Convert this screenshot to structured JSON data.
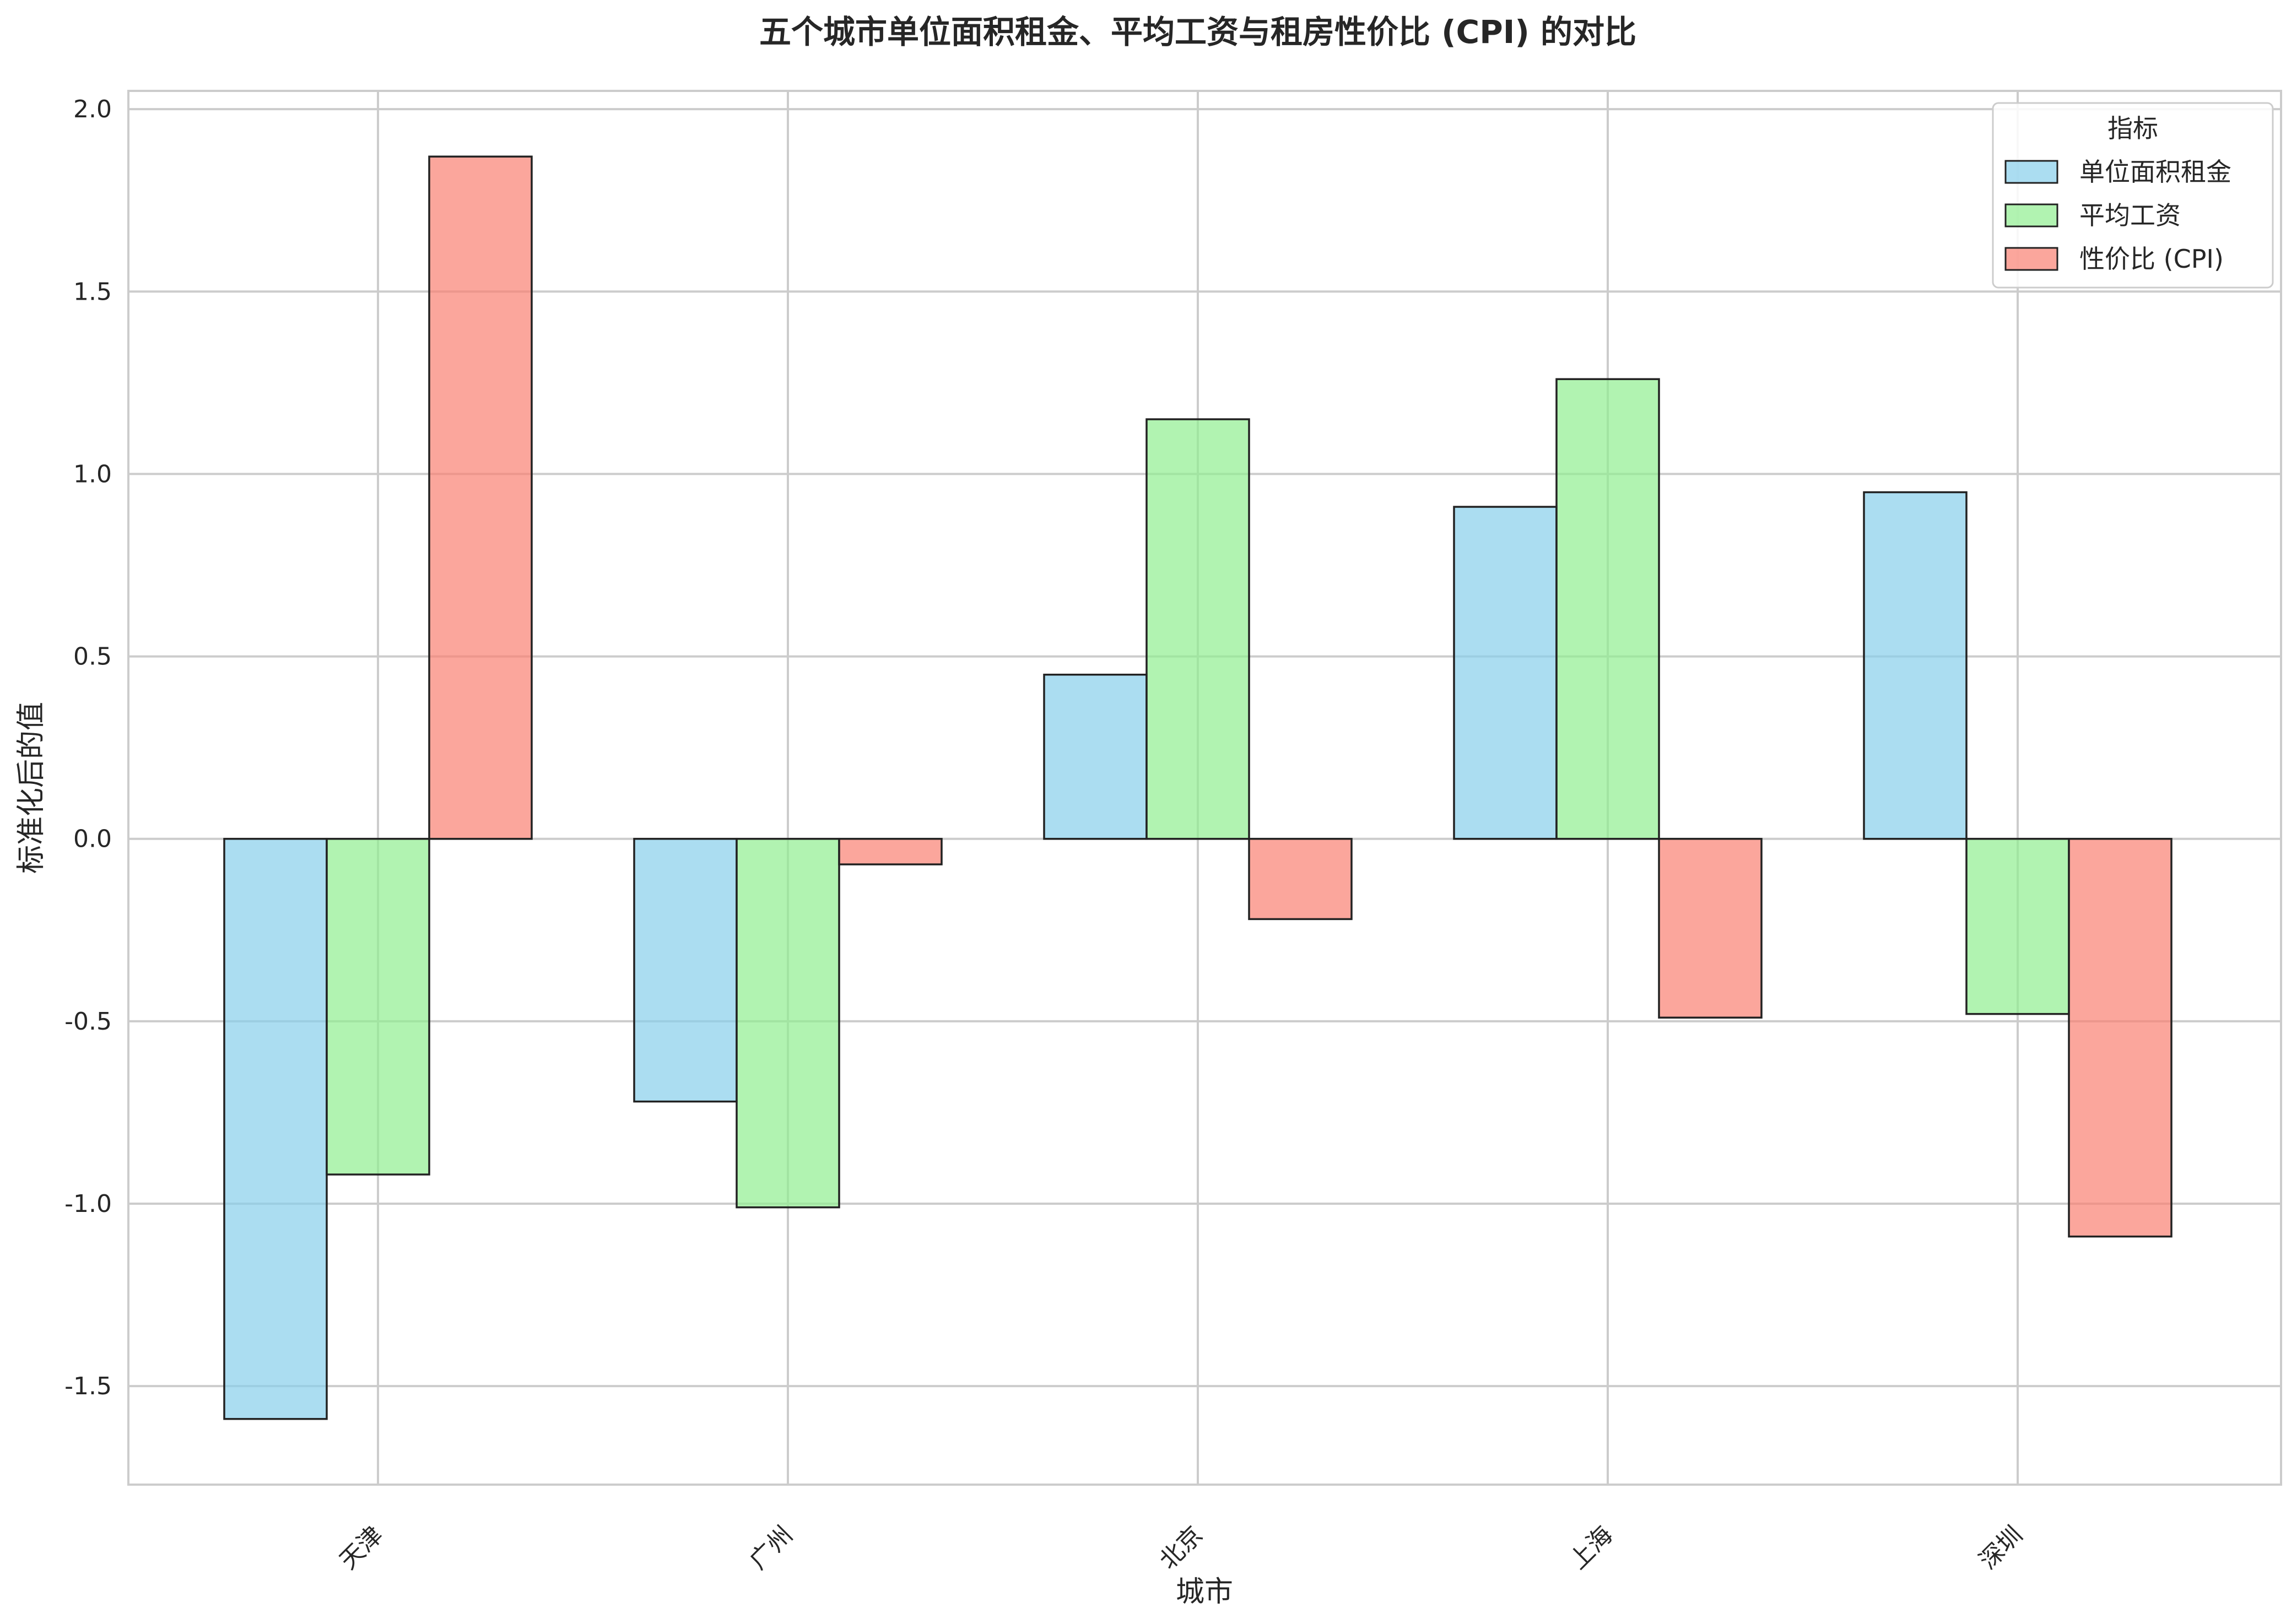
{
  "chart_data": {
    "type": "bar",
    "title": "五个城市单位面积租金、平均工资与租房性价比 (CPI) 的对比",
    "xlabel": "城市",
    "ylabel": "标准化后的值",
    "categories": [
      "天津",
      "广州",
      "北京",
      "上海",
      "深圳"
    ],
    "series": [
      {
        "name": "单位面积租金",
        "color": "#87CEEB",
        "values": [
          -1.59,
          -0.72,
          0.45,
          0.91,
          0.95
        ]
      },
      {
        "name": "平均工资",
        "color": "#90EE90",
        "values": [
          -0.92,
          -1.01,
          1.15,
          1.26,
          -0.48
        ]
      },
      {
        "name": "性价比 (CPI)",
        "color": "#FA8072",
        "values": [
          1.87,
          -0.07,
          -0.22,
          -0.49,
          -1.09
        ]
      }
    ],
    "ylim": [
      -1.77,
      2.05
    ],
    "yticks": [
      -1.5,
      -1.0,
      -0.5,
      0.0,
      0.5,
      1.0,
      1.5,
      2.0
    ],
    "ytick_labels": [
      "-1.5",
      "-1.0",
      "-0.5",
      "0.0",
      "0.5",
      "1.0",
      "1.5",
      "2.0"
    ],
    "grid": true,
    "legend": {
      "title": "指标",
      "placement": "top-right"
    },
    "xtick_rotation_deg": 45
  }
}
